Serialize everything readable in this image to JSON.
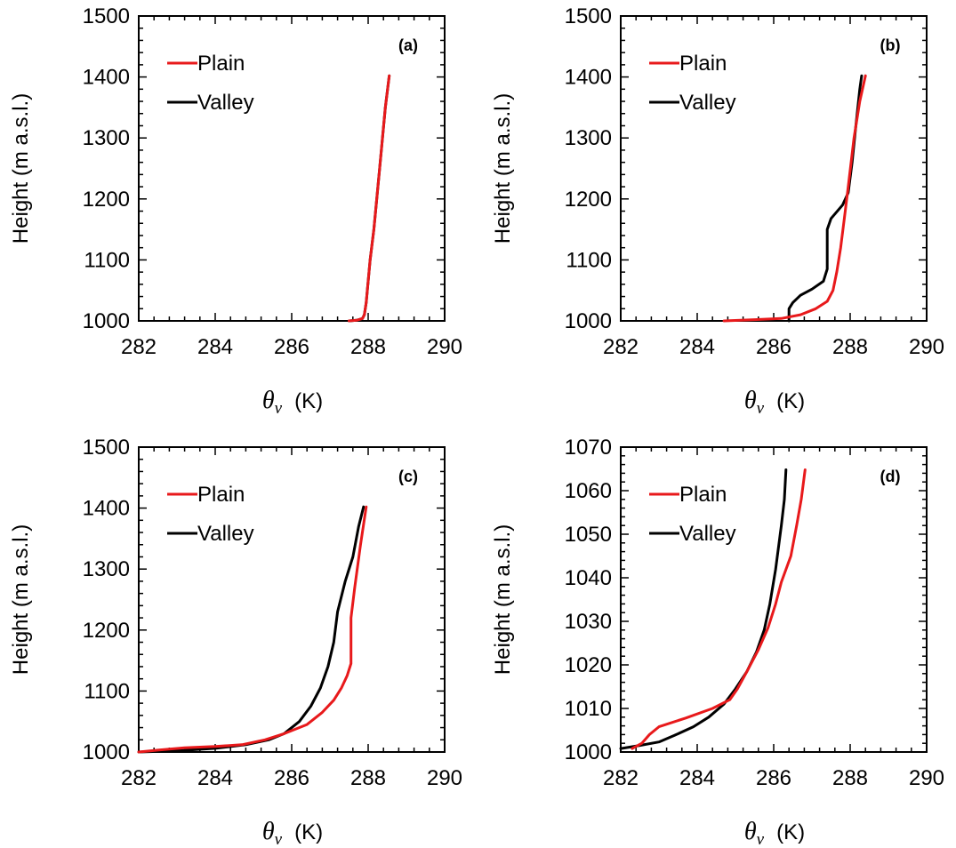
{
  "chart_data": [
    {
      "type": "line",
      "panel_label": "(a)",
      "xlabel_symbol": "θ",
      "xlabel_subscript": "v",
      "xlabel_unit": "(K)",
      "ylabel": "Height (m a.s.l.)",
      "xlim": [
        282,
        290
      ],
      "ylim": [
        1000,
        1500
      ],
      "xticks": [
        "282",
        "284",
        "286",
        "288",
        "290"
      ],
      "yticks": [
        "1000",
        "1100",
        "1200",
        "1300",
        "1400",
        "1500"
      ],
      "legend_position": "top-left",
      "series": [
        {
          "name": "Valley",
          "color": "#000000",
          "points": [
            [
              287.5,
              1000
            ],
            [
              287.7,
              1001
            ],
            [
              287.85,
              1004
            ],
            [
              287.9,
              1010
            ],
            [
              287.95,
              1030
            ],
            [
              288.05,
              1100
            ],
            [
              288.15,
              1150
            ],
            [
              288.3,
              1250
            ],
            [
              288.45,
              1350
            ],
            [
              288.55,
              1402
            ]
          ]
        },
        {
          "name": "Plain",
          "color": "#e8191b",
          "points": [
            [
              287.5,
              1000
            ],
            [
              287.7,
              1001
            ],
            [
              287.85,
              1004
            ],
            [
              287.9,
              1010
            ],
            [
              287.95,
              1030
            ],
            [
              288.05,
              1100
            ],
            [
              288.15,
              1150
            ],
            [
              288.3,
              1250
            ],
            [
              288.45,
              1350
            ],
            [
              288.55,
              1402
            ]
          ]
        }
      ]
    },
    {
      "type": "line",
      "panel_label": "(b)",
      "xlabel_symbol": "θ",
      "xlabel_subscript": "v",
      "xlabel_unit": "(K)",
      "ylabel": "Height (m a.s.l.)",
      "xlim": [
        282,
        290
      ],
      "ylim": [
        1000,
        1500
      ],
      "xticks": [
        "282",
        "284",
        "286",
        "288",
        "290"
      ],
      "yticks": [
        "1000",
        "1100",
        "1200",
        "1300",
        "1400",
        "1500"
      ],
      "legend_position": "top-left",
      "series": [
        {
          "name": "Valley",
          "color": "#000000",
          "points": [
            [
              286.4,
              1000
            ],
            [
              286.4,
              1020
            ],
            [
              286.5,
              1030
            ],
            [
              286.7,
              1042
            ],
            [
              287.0,
              1052
            ],
            [
              287.3,
              1065
            ],
            [
              287.4,
              1085
            ],
            [
              287.4,
              1120
            ],
            [
              287.4,
              1150
            ],
            [
              287.5,
              1168
            ],
            [
              287.8,
              1190
            ],
            [
              287.95,
              1210
            ],
            [
              288.05,
              1260
            ],
            [
              288.15,
              1320
            ],
            [
              288.25,
              1380
            ],
            [
              288.3,
              1402
            ]
          ]
        },
        {
          "name": "Plain",
          "color": "#e8191b",
          "points": [
            [
              284.7,
              1000
            ],
            [
              285.5,
              1002
            ],
            [
              286.2,
              1004
            ],
            [
              286.7,
              1010
            ],
            [
              287.1,
              1020
            ],
            [
              287.4,
              1032
            ],
            [
              287.55,
              1050
            ],
            [
              287.65,
              1080
            ],
            [
              287.75,
              1120
            ],
            [
              287.85,
              1170
            ],
            [
              287.95,
              1220
            ],
            [
              288.1,
              1300
            ],
            [
              288.25,
              1360
            ],
            [
              288.4,
              1402
            ]
          ]
        }
      ]
    },
    {
      "type": "line",
      "panel_label": "(c)",
      "xlabel_symbol": "θ",
      "xlabel_subscript": "v",
      "xlabel_unit": "(K)",
      "ylabel": "Height (m a.s.l.)",
      "xlim": [
        282,
        290
      ],
      "ylim": [
        1000,
        1500
      ],
      "xticks": [
        "282",
        "284",
        "286",
        "288",
        "290"
      ],
      "yticks": [
        "1000",
        "1100",
        "1200",
        "1300",
        "1400",
        "1500"
      ],
      "legend_position": "top-left",
      "series": [
        {
          "name": "Valley",
          "color": "#000000",
          "points": [
            [
              282.0,
              1000
            ],
            [
              283.0,
              1002
            ],
            [
              284.0,
              1006
            ],
            [
              284.8,
              1012
            ],
            [
              285.4,
              1020
            ],
            [
              285.8,
              1030
            ],
            [
              286.2,
              1050
            ],
            [
              286.5,
              1075
            ],
            [
              286.75,
              1105
            ],
            [
              286.95,
              1140
            ],
            [
              287.1,
              1180
            ],
            [
              287.2,
              1230
            ],
            [
              287.4,
              1280
            ],
            [
              287.6,
              1320
            ],
            [
              287.75,
              1370
            ],
            [
              287.88,
              1402
            ]
          ]
        },
        {
          "name": "Plain",
          "color": "#e8191b",
          "points": [
            [
              282.0,
              1000
            ],
            [
              282.5,
              1003
            ],
            [
              283.2,
              1007
            ],
            [
              284.0,
              1009
            ],
            [
              284.7,
              1012
            ],
            [
              285.3,
              1020
            ],
            [
              285.8,
              1030
            ],
            [
              286.4,
              1045
            ],
            [
              286.8,
              1065
            ],
            [
              287.1,
              1085
            ],
            [
              287.3,
              1105
            ],
            [
              287.45,
              1125
            ],
            [
              287.55,
              1145
            ],
            [
              287.55,
              1180
            ],
            [
              287.55,
              1220
            ],
            [
              287.65,
              1270
            ],
            [
              287.8,
              1340
            ],
            [
              287.95,
              1402
            ]
          ]
        }
      ]
    },
    {
      "type": "line",
      "panel_label": "(d)",
      "xlabel_symbol": "θ",
      "xlabel_subscript": "v",
      "xlabel_unit": "(K)",
      "ylabel": "Height (m a.s.l.)",
      "xlim": [
        282,
        290
      ],
      "ylim": [
        1000,
        1070
      ],
      "xticks": [
        "282",
        "284",
        "286",
        "288",
        "290"
      ],
      "yticks": [
        "1000",
        "1010",
        "1020",
        "1030",
        "1040",
        "1050",
        "1060",
        "1070"
      ],
      "legend_position": "top-left",
      "series": [
        {
          "name": "Valley",
          "color": "#000000",
          "points": [
            [
              282.0,
              1000.8
            ],
            [
              282.5,
              1001.5
            ],
            [
              283.0,
              1002.3
            ],
            [
              283.4,
              1003.8
            ],
            [
              283.9,
              1005.8
            ],
            [
              284.3,
              1008.0
            ],
            [
              284.7,
              1011.0
            ],
            [
              285.0,
              1014.5
            ],
            [
              285.3,
              1018.5
            ],
            [
              285.55,
              1023.0
            ],
            [
              285.75,
              1028.0
            ],
            [
              285.9,
              1034.0
            ],
            [
              286.05,
              1042.0
            ],
            [
              286.2,
              1052.0
            ],
            [
              286.28,
              1058.0
            ],
            [
              286.32,
              1064.8
            ]
          ]
        },
        {
          "name": "Plain",
          "color": "#e8191b",
          "points": [
            [
              282.3,
              1000.8
            ],
            [
              282.55,
              1002.0
            ],
            [
              282.75,
              1004.0
            ],
            [
              283.0,
              1005.8
            ],
            [
              283.7,
              1007.8
            ],
            [
              284.4,
              1010.0
            ],
            [
              284.85,
              1012.0
            ],
            [
              285.05,
              1014.5
            ],
            [
              285.3,
              1018.5
            ],
            [
              285.6,
              1023.5
            ],
            [
              285.85,
              1028.5
            ],
            [
              286.05,
              1034.0
            ],
            [
              286.2,
              1039.0
            ],
            [
              286.45,
              1045.0
            ],
            [
              286.6,
              1052.0
            ],
            [
              286.72,
              1058.0
            ],
            [
              286.82,
              1064.8
            ]
          ]
        }
      ]
    }
  ]
}
